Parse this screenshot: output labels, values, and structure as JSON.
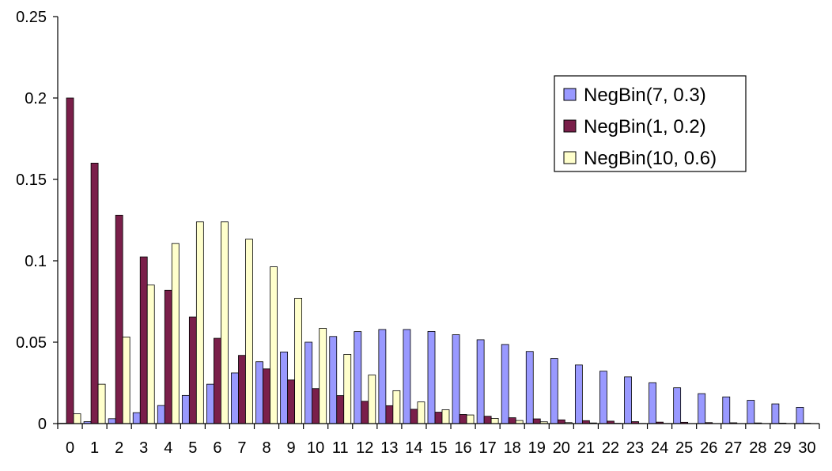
{
  "chart_data": {
    "type": "bar",
    "title": "",
    "xlabel": "",
    "ylabel": "",
    "ylim": [
      0,
      0.25
    ],
    "yticks": [
      "0",
      "0.05",
      "0.1",
      "0.15",
      "0.2",
      "0.25"
    ],
    "categories": [
      "0",
      "1",
      "2",
      "3",
      "4",
      "5",
      "6",
      "7",
      "8",
      "9",
      "10",
      "11",
      "12",
      "13",
      "14",
      "15",
      "16",
      "17",
      "18",
      "19",
      "20",
      "21",
      "22",
      "23",
      "24",
      "25",
      "26",
      "27",
      "28",
      "29",
      "30"
    ],
    "grid": false,
    "legend_position": "top-right",
    "series": [
      {
        "name": "NegBin(7, 0.3)",
        "color": "#9999ff",
        "values": [
          0.0002,
          0.0012,
          0.003,
          0.0067,
          0.0111,
          0.0173,
          0.0242,
          0.0311,
          0.038,
          0.044,
          0.05,
          0.0535,
          0.0565,
          0.0578,
          0.0578,
          0.0566,
          0.0546,
          0.0515,
          0.0486,
          0.0443,
          0.04,
          0.036,
          0.0322,
          0.0287,
          0.0251,
          0.022,
          0.0184,
          0.0164,
          0.0143,
          0.0121,
          0.01
        ]
      },
      {
        "name": "NegBin(1, 0.2)",
        "color": "#7a1f4a",
        "values": [
          0.2,
          0.16,
          0.128,
          0.1024,
          0.0819,
          0.0655,
          0.0524,
          0.0419,
          0.0336,
          0.0268,
          0.0215,
          0.0172,
          0.0137,
          0.011,
          0.0088,
          0.007,
          0.0056,
          0.0045,
          0.0036,
          0.0029,
          0.0023,
          0.0018,
          0.0015,
          0.0012,
          0.0009,
          0.0008,
          0.0006,
          0.0005,
          0.0004,
          0.0003,
          0.0002
        ]
      },
      {
        "name": "NegBin(10, 0.6)",
        "color": "#ffffcc",
        "values": [
          0.006,
          0.0242,
          0.0532,
          0.0851,
          0.1106,
          0.1239,
          0.1239,
          0.1133,
          0.0963,
          0.077,
          0.0585,
          0.0425,
          0.0298,
          0.0202,
          0.0133,
          0.0085,
          0.0053,
          0.0032,
          0.0019,
          0.0011,
          0.0006,
          0.0004,
          0.0002,
          0.0001,
          0.0001,
          0.0,
          0.0,
          0.0,
          0.0,
          0.0,
          0.0
        ]
      }
    ]
  }
}
